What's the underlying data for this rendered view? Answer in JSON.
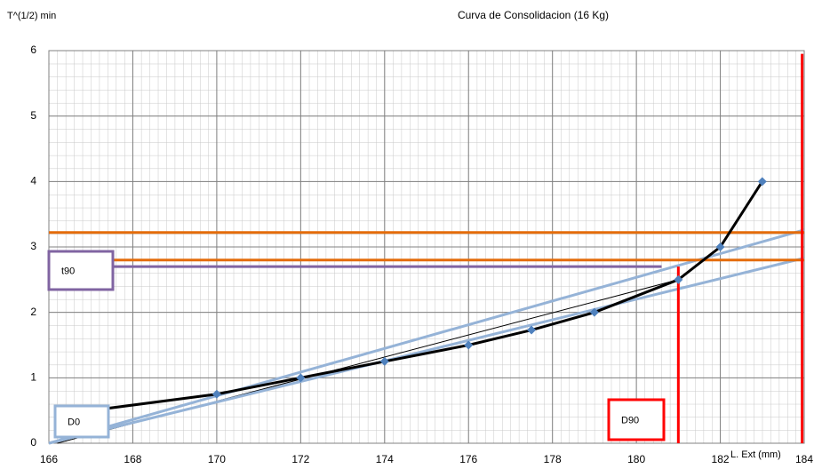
{
  "chart_data": {
    "type": "line",
    "title": "Curva de Consolidacion (16  Kg)",
    "y_label": "T^(1/2) min",
    "x_label": "L. Ext (mm)",
    "xlim": [
      166,
      184
    ],
    "ylim": [
      0,
      6
    ],
    "xticks": [
      166,
      168,
      170,
      172,
      174,
      176,
      178,
      180,
      182,
      184
    ],
    "yticks": [
      0,
      1,
      2,
      3,
      4,
      5,
      6
    ],
    "grid": true,
    "series": [
      {
        "color": "#000000",
        "marker_color": "#4f81bd",
        "x": [
          167,
          170,
          172,
          174,
          176,
          177.5,
          179,
          181,
          182,
          183
        ],
        "values": [
          0.5,
          0.75,
          1,
          1.25,
          1.5,
          1.73,
          2,
          2.5,
          3,
          4
        ]
      }
    ],
    "lines": [
      {
        "color": "#000000",
        "x": [
          166.2,
          181
        ],
        "values": [
          0,
          2.5
        ]
      },
      {
        "color": "#95b3d7",
        "x": [
          166,
          184
        ],
        "values": [
          0,
          3.26
        ]
      },
      {
        "color": "#95b3d7",
        "x": [
          166,
          184
        ],
        "values": [
          0,
          2.83
        ]
      }
    ],
    "hlines": [
      {
        "color": "#e46c0a",
        "value": 3.22
      },
      {
        "color": "#e46c0a",
        "value": 2.8
      },
      {
        "color": "#8064a2",
        "value": 2.7,
        "x_end": 180.6
      }
    ],
    "vlines": [
      {
        "color": "#ff0000",
        "value": 181,
        "y_end": 2.7
      },
      {
        "color": "#ff0000",
        "value": 183.95,
        "y_end": 5.95
      }
    ],
    "annotations": [
      {
        "text": "t90",
        "color": "#8064a2"
      },
      {
        "text": "D0",
        "color": "#95b3d7"
      },
      {
        "text": "D90",
        "color": "#ff0000"
      }
    ]
  }
}
